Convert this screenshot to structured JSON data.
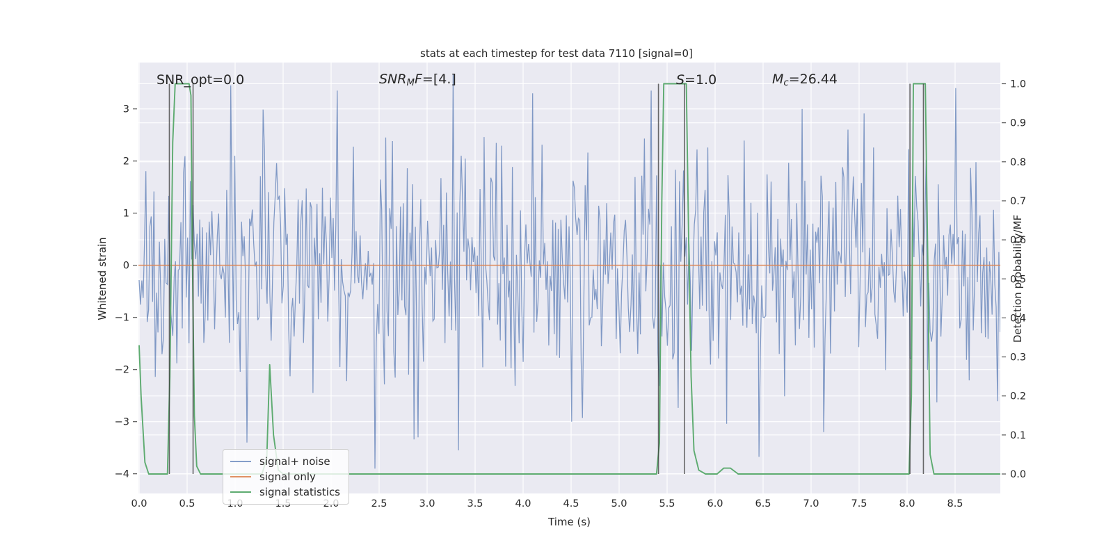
{
  "figure": {
    "bg": "#ffffff",
    "axes_bg": "#eaeaf2",
    "grid_color": "#ffffff",
    "text_color": "#262626",
    "tick_color": "#555555"
  },
  "chart_data": {
    "type": "line",
    "title": "stats at each timestep for test data 7110 [signal=0]",
    "xlabel": "Time (s)",
    "ylabel_left": "Whitened strain",
    "ylabel_right": "Detection probability/MF",
    "xlim": [
      0,
      8.97
    ],
    "ylim_left": [
      -4.38,
      3.89
    ],
    "ylim_right": [
      -0.05,
      1.054
    ],
    "grid": true,
    "x_ticks": [
      0.0,
      0.5,
      1.0,
      1.5,
      2.0,
      2.5,
      3.0,
      3.5,
      4.0,
      4.5,
      5.0,
      5.5,
      6.0,
      6.5,
      7.0,
      7.5,
      8.0,
      8.5
    ],
    "y_ticks_left": [
      3,
      2,
      1,
      0,
      -1,
      -2,
      -3,
      -4
    ],
    "y_ticks_right": [
      1.0,
      0.9,
      0.8,
      0.7,
      0.6,
      0.5,
      0.4,
      0.3,
      0.2,
      0.1,
      0.0
    ],
    "series": [
      {
        "name": "signal+ noise",
        "kind": "noise",
        "axis": "left",
        "color": "rgba(76,114,176,0.68)",
        "noise": {
          "seed": 7110,
          "n": 640,
          "sigma": 1.17,
          "t_max": 8.97,
          "clip": 3.95,
          "accents": [
            [
              0.95,
              3.45
            ],
            [
              1.13,
              -3.4
            ],
            [
              2.06,
              3.35
            ],
            [
              2.46,
              -3.9
            ],
            [
              2.9,
              -3.3
            ],
            [
              3.33,
              -3.55
            ],
            [
              4.1,
              3.3
            ],
            [
              4.5,
              -3.0
            ],
            [
              5.33,
              3.35
            ],
            [
              6.9,
              3.0
            ],
            [
              7.13,
              -3.2
            ],
            [
              8.5,
              3.4
            ]
          ]
        }
      },
      {
        "name": "signal only",
        "kind": "hline",
        "axis": "left",
        "y": 0,
        "color": "rgba(221,132,82,0.9)"
      },
      {
        "name": "signal statistics",
        "kind": "line",
        "axis": "right",
        "color": "rgba(85,168,104,0.95)",
        "points": [
          [
            0,
            0.33
          ],
          [
            0.02,
            0.2
          ],
          [
            0.06,
            0.03
          ],
          [
            0.1,
            0
          ],
          [
            0.295,
            0
          ],
          [
            0.32,
            0.25
          ],
          [
            0.35,
            0.85
          ],
          [
            0.375,
            1.0
          ],
          [
            0.52,
            1.0
          ],
          [
            0.54,
            0.97
          ],
          [
            0.555,
            0.55
          ],
          [
            0.575,
            0.15
          ],
          [
            0.6,
            0.02
          ],
          [
            0.64,
            0
          ],
          [
            1.28,
            0
          ],
          [
            1.33,
            0.04
          ],
          [
            1.36,
            0.28
          ],
          [
            1.4,
            0.1
          ],
          [
            1.45,
            0.01
          ],
          [
            1.5,
            0
          ],
          [
            5.39,
            0
          ],
          [
            5.42,
            0.08
          ],
          [
            5.445,
            0.7
          ],
          [
            5.465,
            1.0
          ],
          [
            5.7,
            1.0
          ],
          [
            5.725,
            0.6
          ],
          [
            5.75,
            0.25
          ],
          [
            5.78,
            0.06
          ],
          [
            5.83,
            0.01
          ],
          [
            5.9,
            0
          ],
          [
            6.02,
            0
          ],
          [
            6.09,
            0.015
          ],
          [
            6.16,
            0.015
          ],
          [
            6.24,
            0
          ],
          [
            8.02,
            0
          ],
          [
            8.045,
            0.2
          ],
          [
            8.065,
            1.0
          ],
          [
            8.19,
            1.0
          ],
          [
            8.215,
            0.55
          ],
          [
            8.24,
            0.05
          ],
          [
            8.28,
            0
          ],
          [
            8.97,
            0
          ]
        ]
      }
    ],
    "vlines": {
      "xs": [
        0.315,
        0.562,
        5.41,
        5.68,
        8.03,
        8.17
      ],
      "axis": "right",
      "from": 0.0,
      "to": 1.0,
      "color": "rgba(58,58,58,0.75)"
    },
    "annotations": [
      {
        "name": "annotation-snr-opt",
        "x": 0.181,
        "y": 3.55,
        "parts": [
          {
            "text": "SNR_opt=0.0"
          }
        ]
      },
      {
        "name": "annotation-snr-mf",
        "x": 2.5,
        "y": 3.55,
        "parts": [
          {
            "text": "SNR",
            "italic": true
          },
          {
            "text": "M",
            "italic": true,
            "sub": true
          },
          {
            "text": "F",
            "italic": true
          },
          {
            "text": "=[4.]"
          }
        ]
      },
      {
        "name": "annotation-s",
        "x": 5.594,
        "y": 3.55,
        "parts": [
          {
            "text": "S",
            "italic": true
          },
          {
            "text": "=1.0"
          }
        ]
      },
      {
        "name": "annotation-mc",
        "x": 6.594,
        "y": 3.55,
        "parts": [
          {
            "text": "M",
            "italic": true
          },
          {
            "text": "c",
            "italic": true,
            "sub": true
          },
          {
            "text": "=26.44"
          }
        ]
      }
    ],
    "legend": {
      "position": "lower left",
      "facecolor": "rgba(255,255,255,0.8)",
      "edgecolor": "#cccccc",
      "entries": [
        "signal+ noise",
        "signal only",
        "signal statistics"
      ]
    }
  }
}
